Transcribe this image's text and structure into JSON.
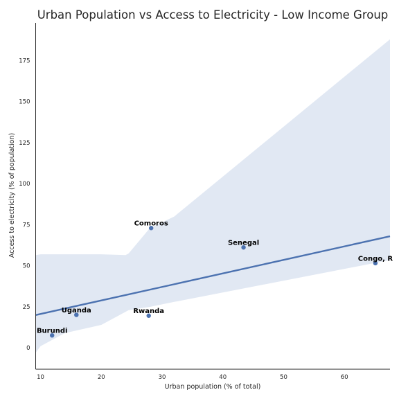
{
  "chart_data": {
    "type": "scatter",
    "title": "Urban Population vs Access to Electricity - Low Income Group",
    "xlabel": "Urban population (% of total)",
    "ylabel": "Access to electricity (% of population)",
    "xlim": [
      9.2,
      67.5
    ],
    "ylim": [
      -13,
      198
    ],
    "xticks": [
      10,
      20,
      30,
      40,
      50,
      60
    ],
    "yticks": [
      0,
      25,
      50,
      75,
      100,
      125,
      150,
      175
    ],
    "grid": false,
    "points": [
      {
        "label": "Burundi",
        "x": 11.9,
        "y": 7.6
      },
      {
        "label": "Uganda",
        "x": 15.9,
        "y": 20.1
      },
      {
        "label": "Rwanda",
        "x": 27.8,
        "y": 19.6
      },
      {
        "label": "Comoros",
        "x": 28.2,
        "y": 73.0
      },
      {
        "label": "Senegal",
        "x": 43.4,
        "y": 61.2
      },
      {
        "label": "Congo, R",
        "x": 65.1,
        "y": 51.6
      }
    ],
    "regression": {
      "x": [
        9.2,
        67.5
      ],
      "y": [
        20.0,
        68.0
      ]
    },
    "confidence_band": {
      "x": [
        9.2,
        10,
        14,
        20,
        24,
        24.5,
        28,
        32,
        67.5
      ],
      "upper": [
        56.5,
        57.0,
        57.0,
        57.0,
        56.5,
        57.5,
        73.0,
        80.0,
        188.0
      ],
      "lower": [
        -3.0,
        1.0,
        9.0,
        14.0,
        22.0,
        23.0,
        25.0,
        28.0,
        53.5
      ]
    },
    "colors": {
      "points": "#4c72b0",
      "line": "#4c72b0",
      "band": "#e1e8f3",
      "axes": "#262626"
    }
  }
}
